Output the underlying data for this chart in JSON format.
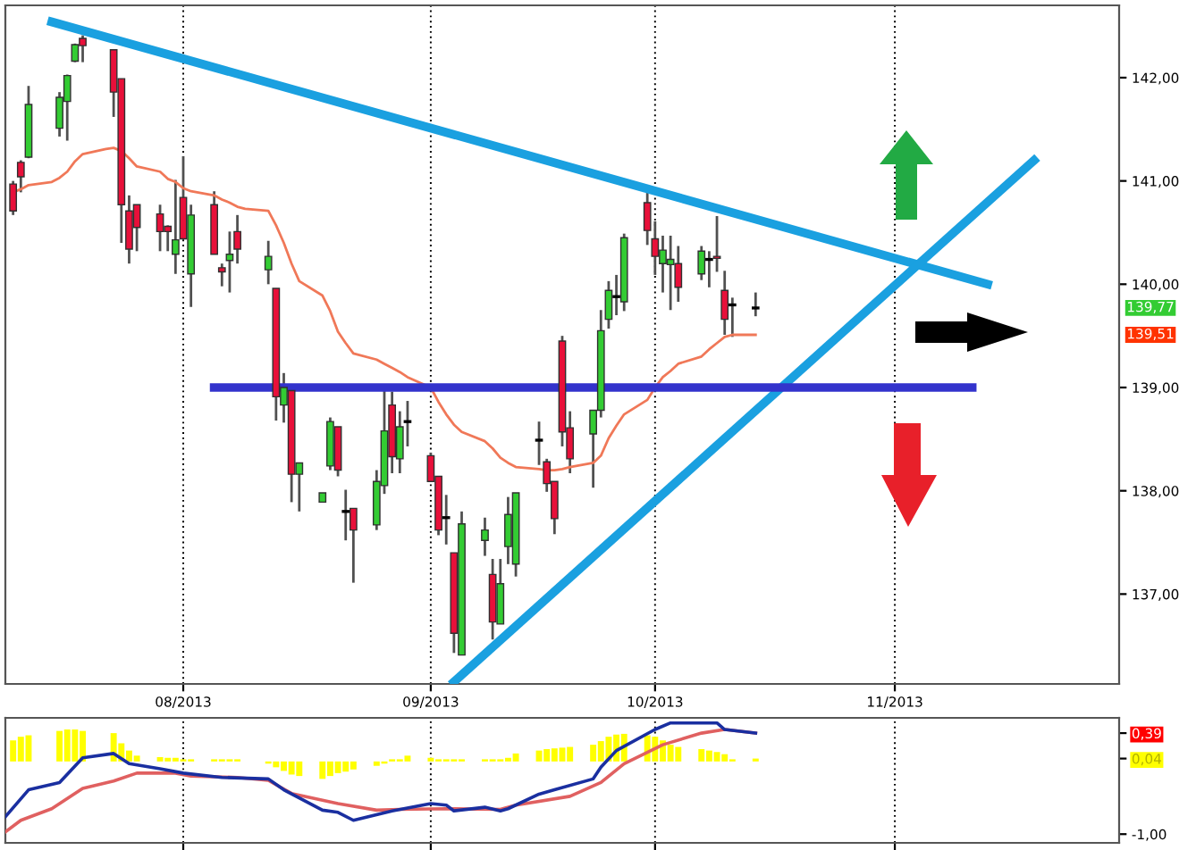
{
  "chart_data": [
    {
      "type": "candlestick",
      "x": [
        "2013-07-10",
        "2013-07-11",
        "2013-07-12",
        "2013-07-16",
        "2013-07-17",
        "2013-07-18",
        "2013-07-19",
        "2013-07-23",
        "2013-07-24",
        "2013-07-25",
        "2013-07-26",
        "2013-07-29",
        "2013-07-30",
        "2013-07-31",
        "2013-08-01",
        "2013-08-02",
        "2013-08-05",
        "2013-08-06",
        "2013-08-07",
        "2013-08-08",
        "2013-08-12",
        "2013-08-13",
        "2013-08-14",
        "2013-08-15",
        "2013-08-16",
        "2013-08-19",
        "2013-08-20",
        "2013-08-21",
        "2013-08-22",
        "2013-08-23",
        "2013-08-26",
        "2013-08-27",
        "2013-08-28",
        "2013-08-29",
        "2013-08-30",
        "2013-09-02",
        "2013-09-03",
        "2013-09-04",
        "2013-09-05",
        "2013-09-06",
        "2013-09-09",
        "2013-09-10",
        "2013-09-11",
        "2013-09-12",
        "2013-09-13",
        "2013-09-16",
        "2013-09-17",
        "2013-09-18",
        "2013-09-19",
        "2013-09-20",
        "2013-09-23",
        "2013-09-24",
        "2013-09-25",
        "2013-09-26",
        "2013-09-27",
        "2013-09-30",
        "2013-10-01",
        "2013-10-02",
        "2013-10-03",
        "2013-10-04",
        "2013-10-07",
        "2013-10-08",
        "2013-10-09",
        "2013-10-10",
        "2013-10-11",
        "2013-10-14"
      ],
      "ohlc": [
        [
          140.97,
          141.0,
          140.67,
          140.71
        ],
        [
          141.18,
          141.2,
          140.89,
          141.04
        ],
        [
          141.23,
          141.92,
          141.22,
          141.74
        ],
        [
          141.51,
          141.86,
          141.43,
          141.81
        ],
        [
          141.77,
          142.03,
          141.39,
          142.02
        ],
        [
          142.16,
          142.33,
          142.15,
          142.32
        ],
        [
          142.38,
          142.41,
          142.15,
          142.31
        ],
        [
          142.27,
          142.27,
          141.62,
          141.86
        ],
        [
          141.99,
          141.99,
          140.4,
          140.77
        ],
        [
          140.71,
          140.86,
          140.2,
          140.34
        ],
        [
          140.77,
          140.77,
          140.32,
          140.55
        ],
        [
          140.68,
          140.77,
          140.32,
          140.51
        ],
        [
          140.56,
          140.57,
          140.32,
          140.51
        ],
        [
          140.29,
          141.01,
          140.1,
          140.43
        ],
        [
          140.84,
          141.24,
          140.44,
          140.44
        ],
        [
          140.1,
          140.77,
          139.78,
          140.67
        ],
        [
          140.77,
          140.9,
          140.29,
          140.29
        ],
        [
          140.16,
          140.2,
          139.98,
          140.12
        ],
        [
          140.23,
          140.51,
          139.92,
          140.29
        ],
        [
          140.51,
          140.67,
          140.2,
          140.34
        ],
        [
          140.14,
          140.42,
          140.0,
          140.27
        ],
        [
          139.96,
          139.96,
          138.68,
          138.91
        ],
        [
          138.83,
          139.14,
          138.66,
          139.0
        ],
        [
          138.97,
          138.97,
          137.89,
          138.16
        ],
        [
          138.16,
          138.27,
          137.8,
          138.27
        ],
        [
          137.89,
          137.98,
          137.89,
          137.98
        ],
        [
          138.24,
          138.71,
          138.2,
          138.67
        ],
        [
          138.62,
          138.62,
          138.14,
          138.2
        ],
        [
          137.8,
          138.01,
          137.52,
          137.8
        ],
        [
          137.83,
          137.83,
          137.11,
          137.62
        ],
        [
          137.67,
          138.2,
          137.62,
          138.09
        ],
        [
          138.05,
          138.99,
          137.97,
          138.58
        ],
        [
          138.83,
          138.96,
          138.17,
          138.33
        ],
        [
          138.31,
          138.77,
          138.17,
          138.62
        ],
        [
          138.67,
          138.87,
          138.43,
          138.67
        ],
        [
          138.34,
          138.37,
          138.09,
          138.09
        ],
        [
          138.14,
          138.14,
          137.57,
          137.62
        ],
        [
          137.74,
          137.96,
          137.48,
          137.74
        ],
        [
          137.4,
          137.4,
          136.43,
          136.62
        ],
        [
          136.41,
          137.8,
          136.41,
          137.68
        ],
        [
          137.52,
          137.74,
          137.37,
          137.62
        ],
        [
          137.19,
          137.34,
          136.56,
          136.73
        ],
        [
          136.71,
          137.34,
          136.71,
          137.1
        ],
        [
          137.46,
          137.94,
          137.29,
          137.77
        ],
        [
          137.29,
          137.98,
          137.17,
          137.98
        ],
        [
          138.49,
          138.67,
          138.25,
          138.49
        ],
        [
          138.28,
          138.31,
          137.99,
          138.07
        ],
        [
          138.09,
          138.09,
          137.58,
          137.73
        ],
        [
          139.45,
          139.5,
          138.43,
          138.57
        ],
        [
          138.61,
          138.77,
          138.17,
          138.31
        ],
        [
          138.55,
          138.78,
          138.03,
          138.78
        ],
        [
          138.78,
          139.75,
          138.71,
          139.55
        ],
        [
          139.66,
          140.03,
          139.57,
          139.94
        ],
        [
          139.88,
          140.09,
          139.7,
          139.88
        ],
        [
          139.83,
          140.49,
          139.74,
          140.45
        ],
        [
          140.79,
          140.9,
          140.38,
          140.52
        ],
        [
          140.44,
          140.61,
          140.09,
          140.27
        ],
        [
          140.2,
          140.47,
          139.92,
          140.33
        ],
        [
          140.19,
          140.47,
          139.75,
          140.24
        ],
        [
          140.2,
          140.37,
          139.83,
          139.97
        ],
        [
          140.1,
          140.37,
          140.04,
          140.32
        ],
        [
          140.24,
          140.32,
          139.97,
          140.24
        ],
        [
          140.27,
          140.66,
          140.12,
          140.25
        ],
        [
          139.94,
          140.13,
          139.51,
          139.66
        ],
        [
          139.8,
          139.87,
          139.49,
          139.8
        ],
        [
          139.77,
          139.92,
          139.69,
          139.77
        ]
      ],
      "series": [
        {
          "type": "line",
          "color": "#f07858",
          "x": [
            "2013-07-10",
            "2013-07-11",
            "2013-07-12",
            "2013-07-15",
            "2013-07-16",
            "2013-07-17",
            "2013-07-18",
            "2013-07-19",
            "2013-07-22",
            "2013-07-23",
            "2013-07-24",
            "2013-07-25",
            "2013-07-26",
            "2013-07-29",
            "2013-07-30",
            "2013-07-31",
            "2013-08-01",
            "2013-08-02",
            "2013-08-05",
            "2013-08-06",
            "2013-08-07",
            "2013-08-08",
            "2013-08-09",
            "2013-08-12",
            "2013-08-13",
            "2013-08-14",
            "2013-08-15",
            "2013-08-16",
            "2013-08-19",
            "2013-08-20",
            "2013-08-21",
            "2013-08-22",
            "2013-08-23",
            "2013-08-26",
            "2013-08-27",
            "2013-08-28",
            "2013-08-29",
            "2013-08-30",
            "2013-09-02",
            "2013-09-03",
            "2013-09-04",
            "2013-09-05",
            "2013-09-06",
            "2013-09-09",
            "2013-09-10",
            "2013-09-11",
            "2013-09-12",
            "2013-09-13",
            "2013-09-16",
            "2013-09-17",
            "2013-09-18",
            "2013-09-19",
            "2013-09-20",
            "2013-09-23",
            "2013-09-24",
            "2013-09-25",
            "2013-09-26",
            "2013-09-27",
            "2013-09-30",
            "2013-10-01",
            "2013-10-02",
            "2013-10-03",
            "2013-10-04",
            "2013-10-07",
            "2013-10-08",
            "2013-10-09",
            "2013-10-10",
            "2013-10-11",
            "2013-10-14"
          ],
          "values": [
            140.89,
            140.92,
            140.96,
            140.99,
            141.03,
            141.09,
            141.19,
            141.26,
            141.31,
            141.32,
            141.29,
            141.22,
            141.14,
            141.09,
            141.02,
            140.99,
            140.93,
            140.9,
            140.86,
            140.82,
            140.79,
            140.75,
            140.73,
            140.71,
            140.57,
            140.4,
            140.2,
            140.03,
            139.89,
            139.74,
            139.54,
            139.43,
            139.33,
            139.27,
            139.23,
            139.19,
            139.15,
            139.1,
            139.0,
            138.86,
            138.74,
            138.64,
            138.57,
            138.48,
            138.41,
            138.32,
            138.27,
            138.23,
            138.21,
            138.2,
            138.2,
            138.21,
            138.23,
            138.27,
            138.34,
            138.51,
            138.63,
            138.74,
            138.88,
            139.0,
            139.1,
            139.16,
            139.23,
            139.3,
            139.37,
            139.43,
            139.49,
            139.51,
            139.51
          ]
        },
        {
          "type": "line",
          "color": "#1aa0e0",
          "x": [
            "2013-07-15",
            "2013-11-13"
          ],
          "values": [
            142.54,
            140.0
          ]
        },
        {
          "type": "line",
          "color": "#1aa0e0",
          "x": [
            "2013-09-05",
            "2013-11-19"
          ],
          "values": [
            136.15,
            141.2
          ]
        },
        {
          "type": "line",
          "color": "#3333cc",
          "x": [
            "2013-08-05",
            "2013-11-11"
          ],
          "values": [
            139.0,
            139.0
          ]
        }
      ],
      "annotations": [
        "139,77",
        "139,51"
      ],
      "xlim": [
        "2013-07-09",
        "2013-11-30"
      ],
      "ylim": [
        136.13,
        142.7
      ],
      "xticks": [
        {
          "value": "2013-08-01",
          "label": "08/2013"
        },
        {
          "value": "2013-09-02",
          "label": "09/2013"
        },
        {
          "value": "2013-10-01",
          "label": "10/2013"
        },
        {
          "value": "2013-11-01",
          "label": "11/2013"
        }
      ],
      "yticks": [
        {
          "value": 137,
          "label": "137,00"
        },
        {
          "value": 138,
          "label": "138,00"
        },
        {
          "value": 139,
          "label": "139,00"
        },
        {
          "value": 140,
          "label": "140,00"
        },
        {
          "value": 141,
          "label": "141,00"
        },
        {
          "value": 142,
          "label": "142,00"
        }
      ],
      "grid": "x",
      "legend": false
    },
    {
      "type": "bar",
      "x": [
        "2013-07-10",
        "2013-07-11",
        "2013-07-12",
        "2013-07-16",
        "2013-07-17",
        "2013-07-18",
        "2013-07-19",
        "2013-07-23",
        "2013-07-24",
        "2013-07-25",
        "2013-07-26",
        "2013-07-29",
        "2013-07-30",
        "2013-07-31",
        "2013-08-01",
        "2013-08-02",
        "2013-08-05",
        "2013-08-06",
        "2013-08-07",
        "2013-08-08",
        "2013-08-12",
        "2013-08-13",
        "2013-08-14",
        "2013-08-15",
        "2013-08-16",
        "2013-08-19",
        "2013-08-20",
        "2013-08-21",
        "2013-08-22",
        "2013-08-23",
        "2013-08-26",
        "2013-08-27",
        "2013-08-28",
        "2013-08-29",
        "2013-08-30",
        "2013-09-02",
        "2013-09-03",
        "2013-09-04",
        "2013-09-05",
        "2013-09-06",
        "2013-09-09",
        "2013-09-10",
        "2013-09-11",
        "2013-09-12",
        "2013-09-13",
        "2013-09-16",
        "2013-09-17",
        "2013-09-18",
        "2013-09-19",
        "2013-09-20",
        "2013-09-23",
        "2013-09-24",
        "2013-09-25",
        "2013-09-26",
        "2013-09-27",
        "2013-09-30",
        "2013-10-01",
        "2013-10-02",
        "2013-10-03",
        "2013-10-04",
        "2013-10-07",
        "2013-10-08",
        "2013-10-09",
        "2013-10-10",
        "2013-10-11",
        "2013-10-14"
      ],
      "series": [
        {
          "type": "bar",
          "color": "#ffff00",
          "values": [
            0.29,
            0.34,
            0.36,
            0.42,
            0.44,
            0.44,
            0.42,
            0.39,
            0.25,
            0.15,
            0.08,
            0.06,
            0.05,
            0.05,
            0.03,
            0.03,
            0.03,
            0.03,
            0.03,
            0.03,
            -0.03,
            -0.08,
            -0.13,
            -0.18,
            -0.2,
            -0.24,
            -0.2,
            -0.16,
            -0.14,
            -0.11,
            -0.06,
            -0.03,
            0.03,
            0.03,
            0.08,
            0.05,
            0.03,
            0.03,
            0.03,
            0.03,
            0.03,
            0.03,
            0.03,
            0.05,
            0.11,
            0.15,
            0.17,
            0.18,
            0.19,
            0.2,
            0.23,
            0.28,
            0.34,
            0.37,
            0.38,
            0.36,
            0.34,
            0.29,
            0.23,
            0.2,
            0.17,
            0.15,
            0.13,
            0.1,
            0.03,
            0.04
          ]
        },
        {
          "type": "line",
          "color": "#e06060",
          "x": [
            "2013-07-09",
            "2013-07-11",
            "2013-07-15",
            "2013-07-19",
            "2013-07-23",
            "2013-07-26",
            "2013-07-31",
            "2013-08-02",
            "2013-08-08",
            "2013-08-12",
            "2013-08-15",
            "2013-08-21",
            "2013-08-26",
            "2013-08-29",
            "2013-09-04",
            "2013-09-11",
            "2013-09-13",
            "2013-09-20",
            "2013-09-24",
            "2013-09-27",
            "2013-10-02",
            "2013-10-07",
            "2013-10-10",
            "2013-10-14"
          ],
          "values": [
            -0.97,
            -0.81,
            -0.65,
            -0.37,
            -0.27,
            -0.16,
            -0.16,
            -0.2,
            -0.22,
            -0.26,
            -0.44,
            -0.58,
            -0.67,
            -0.66,
            -0.65,
            -0.66,
            -0.6,
            -0.48,
            -0.29,
            -0.03,
            0.23,
            0.39,
            0.44,
            0.39
          ]
        },
        {
          "type": "line",
          "color": "#1a2fa0",
          "x": [
            "2013-07-09",
            "2013-07-12",
            "2013-07-16",
            "2013-07-19",
            "2013-07-23",
            "2013-07-25",
            "2013-07-29",
            "2013-08-01",
            "2013-08-06",
            "2013-08-12",
            "2013-08-14",
            "2013-08-19",
            "2013-08-21",
            "2013-08-23",
            "2013-08-28",
            "2013-09-02",
            "2013-09-04",
            "2013-09-05",
            "2013-09-09",
            "2013-09-11",
            "2013-09-12",
            "2013-09-16",
            "2013-09-18",
            "2013-09-23",
            "2013-09-24",
            "2013-09-26",
            "2013-10-01",
            "2013-10-03",
            "2013-10-09",
            "2013-10-10",
            "2013-10-14"
          ],
          "values": [
            -0.76,
            -0.39,
            -0.29,
            0.05,
            0.11,
            -0.03,
            -0.1,
            -0.16,
            -0.22,
            -0.24,
            -0.39,
            -0.67,
            -0.7,
            -0.81,
            -0.68,
            -0.58,
            -0.6,
            -0.68,
            -0.63,
            -0.68,
            -0.65,
            -0.45,
            -0.39,
            -0.24,
            -0.08,
            0.15,
            0.44,
            0.53,
            0.53,
            0.44,
            0.39
          ]
        }
      ],
      "ylim": [
        -1.12,
        0.6
      ],
      "yticks": [
        {
          "value": -1,
          "label": "-1,00"
        },
        {
          "value": 0.39,
          "label": "0,39"
        },
        {
          "value": 0.04,
          "label": "0,04"
        }
      ],
      "xlim": [
        "2013-07-09",
        "2013-11-30"
      ],
      "xticks": [
        {
          "value": "2013-08-01",
          "label": null
        },
        {
          "value": "2013-09-02",
          "label": null
        },
        {
          "value": "2013-10-01",
          "label": null
        },
        {
          "value": "2013-11-01",
          "label": null
        }
      ],
      "tick_labels": "y",
      "grid": "x",
      "legend": false
    }
  ]
}
